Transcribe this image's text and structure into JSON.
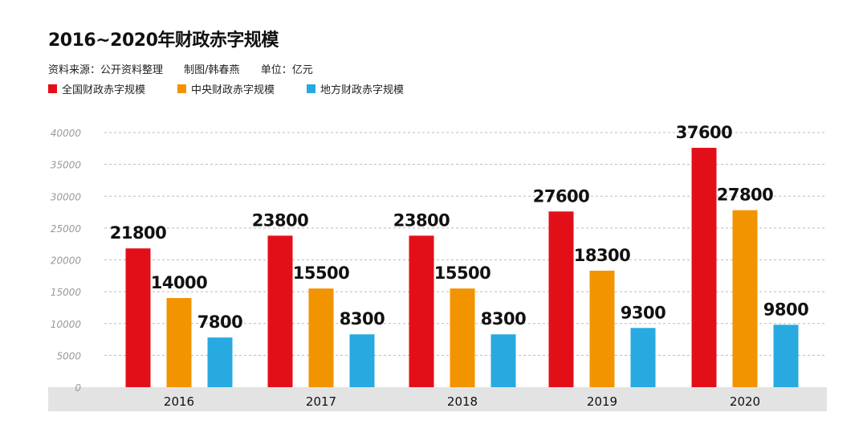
{
  "header": {
    "title": "2016~2020年财政赤字规模",
    "source": "资料来源：公开资料整理",
    "author": "制图/韩春燕",
    "unit": "单位：亿元"
  },
  "colors": {
    "national": "#e30f18",
    "central": "#f29400",
    "local": "#28a9e0",
    "gridline": "#bbbbbb",
    "axis_band": "#e3e3e3"
  },
  "chart_data": {
    "type": "bar",
    "title": "2016~2020年财政赤字规模",
    "ylabel": "单位：亿元",
    "xlabel": "",
    "categories": [
      "2016",
      "2017",
      "2018",
      "2019",
      "2020"
    ],
    "ylim": [
      0,
      40000
    ],
    "yticks": [
      0,
      5000,
      10000,
      15000,
      20000,
      25000,
      30000,
      35000,
      40000
    ],
    "grid": true,
    "legend_position": "top-left",
    "series": [
      {
        "name": "全国财政赤字规模",
        "color": "#e30f18",
        "values": [
          21800,
          23800,
          23800,
          27600,
          37600
        ]
      },
      {
        "name": "中央财政赤字规模",
        "color": "#f29400",
        "values": [
          14000,
          15500,
          15500,
          18300,
          27800
        ]
      },
      {
        "name": "地方财政赤字规模",
        "color": "#28a9e0",
        "values": [
          7800,
          8300,
          8300,
          9300,
          9800
        ]
      }
    ]
  }
}
